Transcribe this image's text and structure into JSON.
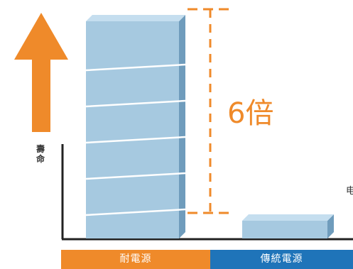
{
  "chart_data": {
    "type": "bar",
    "categories": [
      "耐電源",
      "傳統電源"
    ],
    "values": [
      6,
      1
    ],
    "ylabel": "壽命",
    "ylim": [
      0,
      6
    ],
    "annotation": "6倍",
    "colors": {
      "bar_front": "#a6c9e0",
      "bar_top": "#c5deef",
      "bar_side": "#6f9cbc",
      "segment_line": "#ffffff",
      "accent": "#ef8a2a",
      "secondary": "#1f74b9",
      "axis": "#222222"
    },
    "icons": [
      "up-arrow-icon"
    ],
    "grid": false
  },
  "partial_edge_char": "电"
}
